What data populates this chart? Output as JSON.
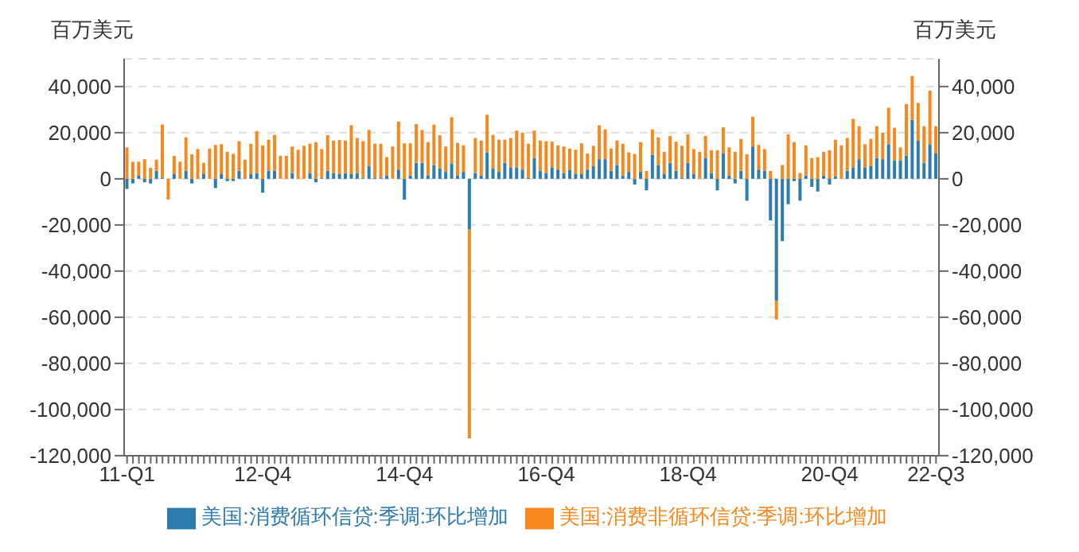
{
  "chart_data": {
    "type": "bar",
    "ylabel": "百万美元",
    "y2label": "百万美元",
    "categories": [
      "11-Q1",
      null,
      null,
      null,
      null,
      null,
      null,
      null,
      null,
      null,
      null,
      null,
      null,
      null,
      null,
      null,
      null,
      null,
      null,
      null,
      null,
      null,
      null,
      "12-Q4",
      null,
      null,
      null,
      null,
      null,
      null,
      null,
      null,
      null,
      null,
      null,
      null,
      null,
      null,
      null,
      null,
      null,
      null,
      null,
      null,
      null,
      null,
      null,
      "14-Q4",
      null,
      null,
      null,
      null,
      null,
      null,
      null,
      null,
      null,
      null,
      null,
      null,
      null,
      null,
      null,
      null,
      null,
      null,
      null,
      null,
      null,
      null,
      null,
      "16-Q4",
      null,
      null,
      null,
      null,
      null,
      null,
      null,
      null,
      null,
      null,
      null,
      null,
      null,
      null,
      null,
      null,
      null,
      null,
      null,
      null,
      null,
      null,
      null,
      "18-Q4",
      null,
      null,
      null,
      null,
      null,
      null,
      null,
      null,
      null,
      null,
      null,
      null,
      null,
      null,
      null,
      null,
      null,
      null,
      null,
      null,
      null,
      null,
      null,
      "20-Q4",
      null,
      null,
      null,
      null,
      null,
      null,
      null,
      null,
      null,
      null,
      null,
      null,
      null,
      null,
      null,
      null,
      null,
      "22-Q3"
    ],
    "series": [
      {
        "name": "美国:消费循环信贷:季调:环比增加",
        "color": "#2e7bae",
        "values": [
          -4400,
          -2000,
          1500,
          -1500,
          -2000,
          3500,
          500,
          0,
          2000,
          0,
          3500,
          -2000,
          0,
          2000,
          0,
          -4000,
          2000,
          -1000,
          -1000,
          3500,
          0,
          2000,
          2500,
          -6000,
          3500,
          3500,
          0,
          0,
          2500,
          0,
          0,
          2500,
          -1500,
          500,
          3500,
          2500,
          2000,
          2500,
          2000,
          2500,
          500,
          5500,
          500,
          500,
          1500,
          0,
          4000,
          -9000,
          1500,
          7000,
          7000,
          1500,
          6000,
          4500,
          3000,
          6500,
          1500,
          3000,
          -22000,
          2500,
          1500,
          11500,
          4500,
          3000,
          7000,
          5000,
          5000,
          4000,
          500,
          9000,
          3500,
          2500,
          5000,
          4000,
          2500,
          4000,
          2000,
          2000,
          4000,
          5500,
          8500,
          8500,
          3500,
          6000,
          1500,
          3000,
          -2500,
          3000,
          -5000,
          10500,
          6000,
          2000,
          7000,
          3500,
          500,
          7000,
          2000,
          0,
          9000,
          2500,
          -5000,
          11000,
          1500,
          -2000,
          3500,
          -9500,
          14000,
          4000,
          3500,
          -18000,
          -53000,
          -27000,
          -11000,
          -1000,
          -9500,
          1500,
          -3500,
          -5500,
          1500,
          -2500,
          1000,
          0,
          3500,
          5000,
          8500,
          5000,
          5500,
          9000,
          8500,
          15000,
          8000,
          8000,
          10000,
          25500,
          16500,
          7000,
          15000,
          11000
        ]
      },
      {
        "name": "美国:消费非循环信贷:季调:环比增加",
        "color": "#f5891f",
        "values": [
          13600,
          7400,
          5900,
          8500,
          4800,
          4800,
          23000,
          -9000,
          8000,
          7400,
          14500,
          10600,
          12900,
          4900,
          13100,
          14700,
          13000,
          11700,
          10800,
          12800,
          8300,
          13200,
          18200,
          14500,
          13500,
          15500,
          10000,
          10000,
          11500,
          12600,
          14300,
          12700,
          15900,
          12400,
          15400,
          14100,
          14800,
          14100,
          21200,
          15200,
          15800,
          15700,
          14700,
          14700,
          7900,
          14000,
          20800,
          15400,
          13900,
          16700,
          14200,
          14400,
          17500,
          14400,
          11000,
          20200,
          14100,
          11500,
          -90500,
          15200,
          15100,
          16300,
          14500,
          14000,
          10000,
          12700,
          15900,
          16000,
          14700,
          11900,
          13100,
          13800,
          11100,
          10500,
          11500,
          9100,
          10600,
          13400,
          7000,
          8800,
          14700,
          12900,
          9600,
          10600,
          13700,
          8500,
          10800,
          12900,
          3400,
          10900,
          12000,
          9700,
          11600,
          12600,
          13800,
          12300,
          10900,
          11700,
          9600,
          9900,
          12400,
          11300,
          12100,
          11700,
          13800,
          10600,
          12900,
          10700,
          9400,
          3400,
          -8000,
          6000,
          19300,
          15900,
          2500,
          13000,
          9000,
          9400,
          10200,
          12400,
          16000,
          14500,
          14200,
          21000,
          14300,
          10000,
          11800,
          13800,
          11500,
          15800,
          14100,
          5600,
          22400,
          19100,
          16400,
          15800,
          23200,
          11800
        ]
      }
    ],
    "stacked": true,
    "ylim": [
      -120000,
      52000
    ],
    "yticks": [
      {
        "value": -120000,
        "label": "-120,000"
      },
      {
        "value": -100000,
        "label": "-100,000"
      },
      {
        "value": -80000,
        "label": "-80,000"
      },
      {
        "value": -60000,
        "label": "-60,000"
      },
      {
        "value": -40000,
        "label": "-40,000"
      },
      {
        "value": -20000,
        "label": "-20,000"
      },
      0,
      {
        "value": 20000,
        "label": "20,000"
      },
      {
        "value": 40000,
        "label": "40,000"
      }
    ],
    "y2lim": [
      -120000,
      52000
    ],
    "y2ticks": [
      {
        "value": -120000,
        "label": "-120,000"
      },
      {
        "value": -100000,
        "label": "-100,000"
      },
      {
        "value": -80000,
        "label": "-80,000"
      },
      {
        "value": -60000,
        "label": "-60,000"
      },
      {
        "value": -40000,
        "label": "-40,000"
      },
      {
        "value": -20000,
        "label": "-20,000"
      },
      0,
      {
        "value": 20000,
        "label": "20,000"
      },
      {
        "value": 40000,
        "label": "40,000"
      }
    ],
    "grid": "y",
    "legend": "bottom"
  }
}
